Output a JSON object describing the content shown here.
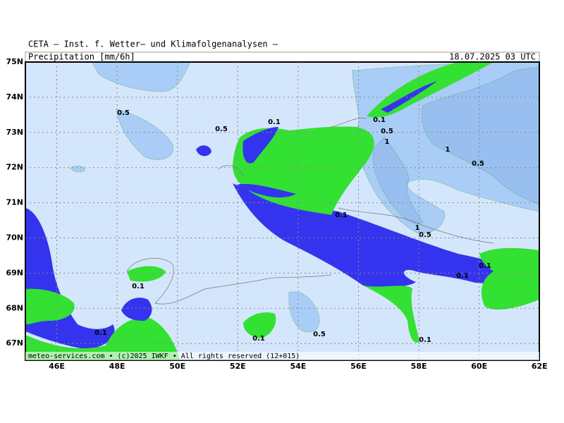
{
  "header": {
    "title": "CETA — Inst. f. Wetter— und Klimafolgenanalysen —",
    "subtitle": "Precipitation [mm/6h]",
    "timestamp": "18.07.2025 03 UTC"
  },
  "footer": "meteo-services.com • (c)2025 IWKF • All rights reserved (12+015)",
  "lat_labels": [
    "75N",
    "74N",
    "73N",
    "72N",
    "71N",
    "70N",
    "69N",
    "68N",
    "67N"
  ],
  "lon_labels": [
    "46E",
    "48E",
    "50E",
    "52E",
    "54E",
    "56E",
    "58E",
    "60E",
    "62E"
  ],
  "contour_labels": [
    "0.5",
    "0.5",
    "0.1",
    "0.1",
    "0.5",
    "1",
    "1",
    "0.5",
    "0.1",
    "1",
    "0.5",
    "0.1",
    "0.1",
    "0.1",
    "0.1",
    "0.1",
    "0.5",
    "0.1"
  ]
}
